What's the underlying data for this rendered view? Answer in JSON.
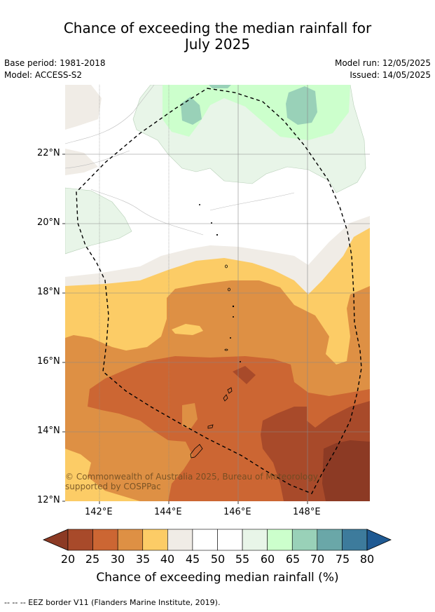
{
  "title_line1": "Chance of exceeding the median rainfall for",
  "title_line2": "July 2025",
  "meta": {
    "base_period": "Base period: 1981-2018",
    "model": "Model: ACCESS-S2",
    "model_run": "Model run: 12/05/2025",
    "issued": "Issued: 14/05/2025"
  },
  "lat_labels": [
    "22°N",
    "20°N",
    "18°N",
    "16°N",
    "14°N",
    "12°N"
  ],
  "lon_labels": [
    "142°E",
    "144°E",
    "146°E",
    "148°E"
  ],
  "copyright": "© Commonwealth of Australia 2025, Bureau of Meteorology, supported by COSPPac",
  "colorbar": {
    "ticks": [
      "20",
      "25",
      "30",
      "35",
      "40",
      "45",
      "50",
      "55",
      "60",
      "65",
      "70",
      "75",
      "80"
    ],
    "colors": [
      "#a84a2a",
      "#cc6633",
      "#de9044",
      "#fccc66",
      "#f0ece6",
      "#ffffff",
      "#ffffff",
      "#e8f5e8",
      "#ccffcc",
      "#99d1b8",
      "#6aa7a8",
      "#3d7b9c"
    ],
    "under_color": "#8c3a24",
    "over_color": "#1f5a93",
    "label": "Chance of exceeding median rainfall (%)"
  },
  "footnote": "--  --  -- EEZ border V11 (Flanders Marine Institute, 2019)."
}
